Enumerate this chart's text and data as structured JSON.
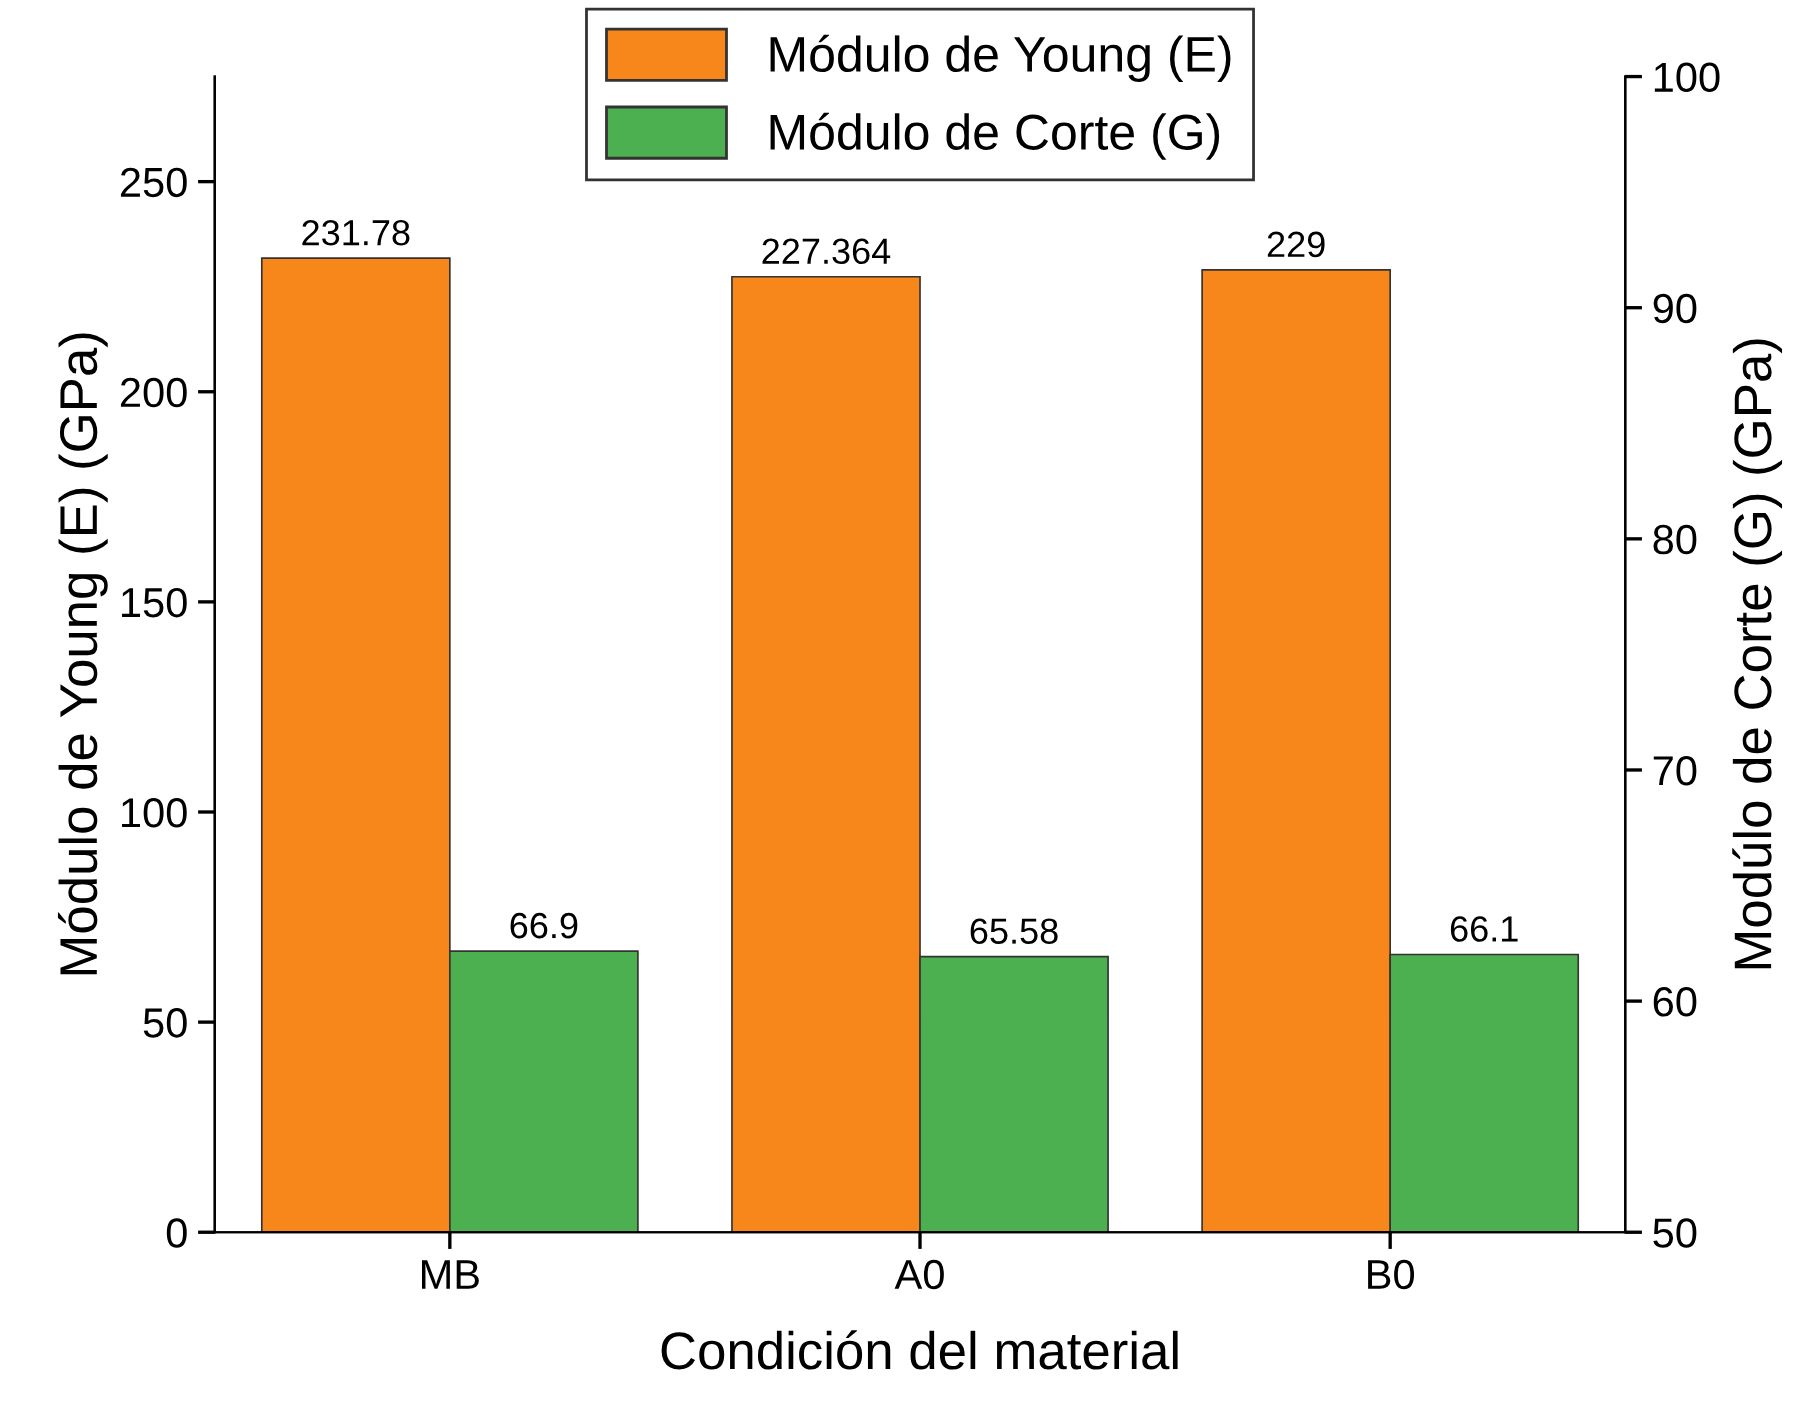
{
  "chart_data": {
    "type": "bar",
    "xlabel": "Condición del material",
    "ylabel": "Módulo de Young (E) (GPa)",
    "y2label": "Modúlo de Corte (G) (GPa)",
    "categories": [
      "MB",
      "A0",
      "B0"
    ],
    "series": [
      {
        "name": "Módulo de Young (E)",
        "color": "#f7861b",
        "values": [
          231.78,
          227.364,
          229
        ]
      },
      {
        "name": "Módulo de Corte (G)",
        "color": "#4caf50",
        "values": [
          66.9,
          65.58,
          66.1
        ]
      }
    ],
    "ylim": [
      0,
      275
    ],
    "yticks": [
      0,
      50,
      100,
      150,
      200,
      250
    ],
    "y2lim": [
      50,
      100
    ],
    "y2ticks": [
      50,
      60,
      70,
      80,
      90,
      100
    ],
    "data_labels": true,
    "legend": "top",
    "grid": false
  }
}
